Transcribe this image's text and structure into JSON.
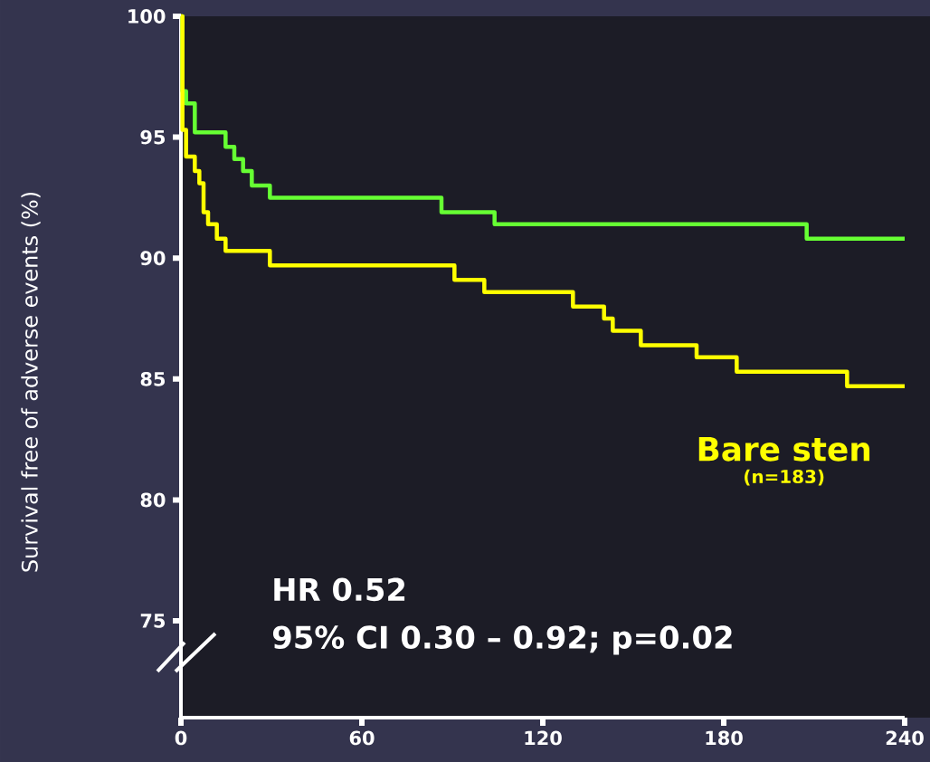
{
  "chart_data": {
    "type": "step",
    "ylabel": "Survival free of adverse events (%)",
    "xlim": [
      0,
      240
    ],
    "ylim": [
      71,
      100
    ],
    "xticks": [
      0,
      60,
      120,
      180,
      240
    ],
    "yticks": [
      75,
      80,
      85,
      90,
      95,
      100
    ],
    "series": [
      {
        "color": "#66ff33",
        "x": [
          0,
          0.5,
          1.7,
          4.6,
          14.8,
          17.7,
          20.6,
          23.5,
          29.5,
          86.4,
          104,
          207.5,
          240
        ],
        "values": [
          100,
          96.9,
          96.4,
          95.2,
          94.6,
          94.1,
          93.6,
          93.0,
          92.5,
          91.9,
          91.4,
          90.8,
          90.8
        ]
      },
      {
        "name": "Bare sten",
        "color": "#ffff00",
        "x": [
          0,
          0.5,
          1.7,
          4.6,
          6.1,
          7.5,
          9,
          11.9,
          14.8,
          29.5,
          90.7,
          100.6,
          130,
          140.3,
          143.2,
          152.5,
          171,
          184.3,
          220.9,
          240
        ],
        "values": [
          100,
          95.3,
          94.2,
          93.6,
          93.1,
          91.9,
          91.4,
          90.8,
          90.3,
          89.7,
          89.1,
          88.6,
          88.0,
          87.5,
          87.0,
          86.4,
          85.9,
          85.3,
          84.7,
          84.7
        ]
      }
    ],
    "annotations": [
      "(n=183)",
      "HR 0.52",
      "95% CI 0.30 – 0.92; p=0.02"
    ]
  }
}
